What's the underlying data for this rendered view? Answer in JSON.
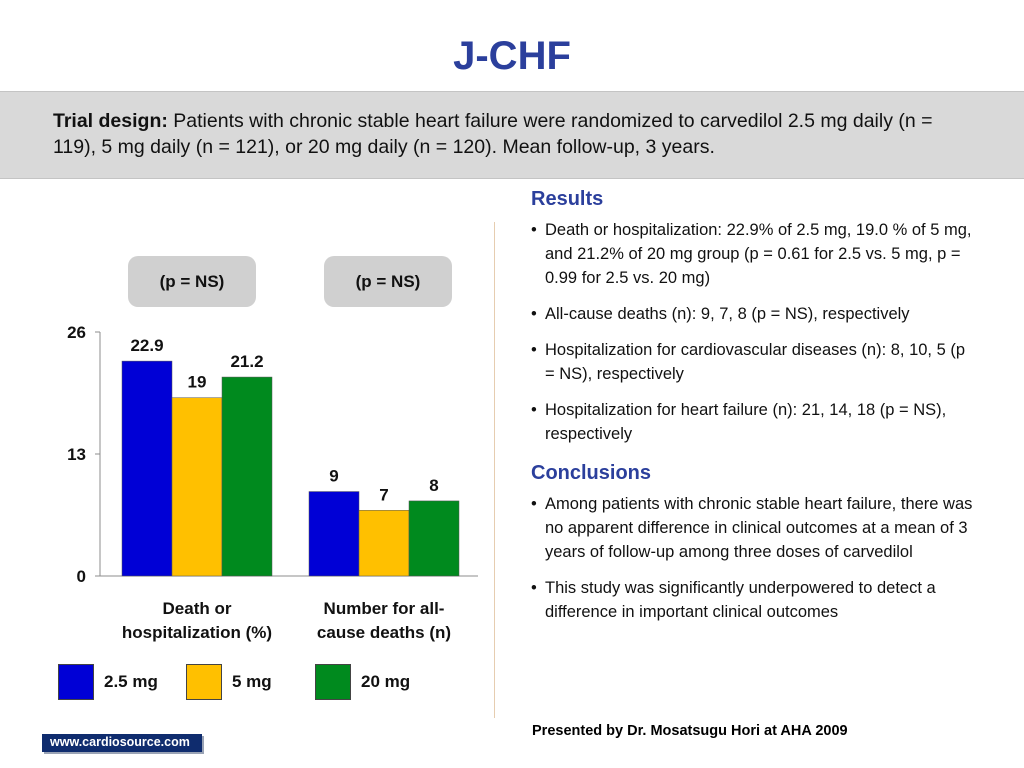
{
  "title": "J-CHF",
  "trial_design": {
    "lead": "Trial design:",
    "text": "Patients with chronic stable heart failure were randomized to carvedilol 2.5 mg daily (n = 119), 5 mg daily (n = 121), or 20 mg daily (n = 120). Mean follow-up, 3 years."
  },
  "p_values": [
    "(p = NS)",
    "(p = NS)"
  ],
  "chart_data": {
    "type": "bar",
    "categories": [
      "Death or hospitalization (%)",
      "Number for all-cause deaths (n)"
    ],
    "category_lines": [
      [
        "Death or",
        "hospitalization (%)"
      ],
      [
        "Number for all-",
        "cause deaths (n)"
      ]
    ],
    "series": [
      {
        "name": "2.5 mg",
        "values": [
          22.9,
          9
        ],
        "labels": [
          "22.9",
          "9"
        ],
        "color": "#0000d6"
      },
      {
        "name": "5 mg",
        "values": [
          19,
          7
        ],
        "labels": [
          "19",
          "7"
        ],
        "color": "#ffc000"
      },
      {
        "name": "20 mg",
        "values": [
          21.2,
          8
        ],
        "labels": [
          "21.2",
          "8"
        ],
        "color": "#008a1e"
      }
    ],
    "yticks": [
      "0",
      "13",
      "26"
    ],
    "ylim": [
      0,
      26
    ],
    "xlabel": "",
    "ylabel": "",
    "grid": false,
    "legend_position": "bottom"
  },
  "results": {
    "heading": "Results",
    "items": [
      "Death or hospitalization: 22.9% of 2.5 mg, 19.0 % of 5 mg, and 21.2% of 20 mg group (p = 0.61 for 2.5 vs. 5 mg, p = 0.99 for 2.5 vs. 20 mg)",
      "All-cause deaths (n): 9, 7, 8 (p = NS), respectively",
      "Hospitalization for cardiovascular diseases (n): 8, 10, 5 (p = NS), respectively",
      "Hospitalization for heart failure (n): 21, 14, 18 (p = NS), respectively"
    ]
  },
  "conclusions": {
    "heading": "Conclusions",
    "items": [
      "Among patients with chronic stable heart failure, there was no apparent difference in clinical outcomes at a mean of 3 years of follow-up among three doses of carvedilol",
      "This study was significantly underpowered to detect a difference in important clinical outcomes"
    ]
  },
  "credit": "Presented by Dr. Mosatsugu Hori at AHA 2009",
  "logo": "www.cardiosource.com"
}
